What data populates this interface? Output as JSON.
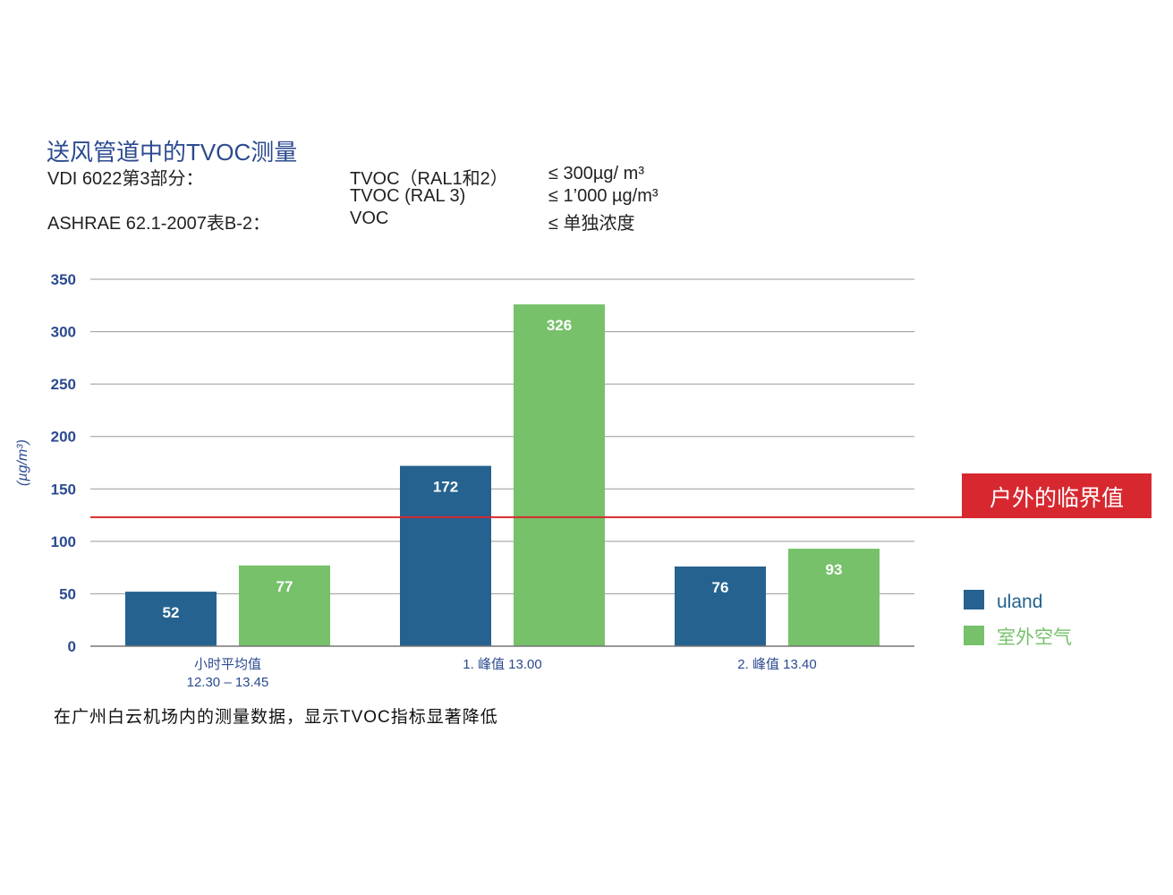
{
  "title": "送风管道中的TVOC测量",
  "standards": [
    {
      "name": "VDI 6022第3部分：",
      "items": [
        {
          "param": "TVOC（RAL1和2）",
          "limit": "≤ 300µg/ m³"
        },
        {
          "param": "TVOC (RAL 3)",
          "limit": "≤ 1’000 µg/m³"
        }
      ]
    },
    {
      "name": "ASHRAE 62.1-2007表B-2：",
      "items": [
        {
          "param": "VOC",
          "limit": "≤ 单独浓度"
        }
      ]
    }
  ],
  "caption": "在广州白云机场内的测量数据，显示TVOC指标显著降低",
  "colors": {
    "uland": "#25628f",
    "outdoor": "#76c16a",
    "threshold": "#d7282f",
    "axis_text": "#2b4a8f",
    "grid": "#999999"
  },
  "chart_data": {
    "type": "bar",
    "categories": [
      [
        "小时平均值",
        "12.30 – 13.45"
      ],
      [
        "1. 峰值 13.00"
      ],
      [
        "2. 峰值 13.40"
      ]
    ],
    "series": [
      {
        "name": "uland",
        "values": [
          52,
          172,
          76
        ]
      },
      {
        "name": "室外空气",
        "values": [
          77,
          326,
          93
        ]
      }
    ],
    "ylabel": "(µg/m³)",
    "ylim": [
      0,
      350
    ],
    "yticks": [
      0,
      50,
      100,
      150,
      200,
      250,
      300,
      350
    ],
    "threshold": {
      "value": 123,
      "label": "户外的临界值"
    },
    "grid": true,
    "legend_position": "right"
  }
}
